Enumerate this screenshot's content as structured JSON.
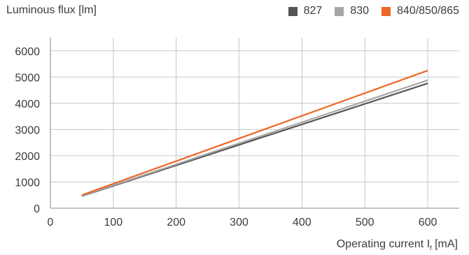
{
  "chart_data": {
    "type": "line",
    "ylabel": "Luminous flux [lm]",
    "xlabel": "Operating current I",
    "xlabel_sub": "f",
    "xlabel_unit": " [mA]",
    "xlim": [
      0,
      650
    ],
    "ylim": [
      0,
      6500
    ],
    "x_ticks": [
      0,
      100,
      200,
      300,
      400,
      500,
      600
    ],
    "y_ticks": [
      0,
      1000,
      2000,
      3000,
      4000,
      5000,
      6000
    ],
    "grid": true,
    "legend_position": "top-right",
    "series": [
      {
        "name": "827",
        "color": "#555555",
        "x": [
          50,
          600
        ],
        "y": [
          460,
          4760
        ]
      },
      {
        "name": "830",
        "color": "#a6a6a6",
        "x": [
          50,
          600
        ],
        "y": [
          470,
          4880
        ]
      },
      {
        "name": "840/850/865",
        "color": "#ec6625",
        "x": [
          50,
          600
        ],
        "y": [
          500,
          5250
        ]
      }
    ]
  }
}
